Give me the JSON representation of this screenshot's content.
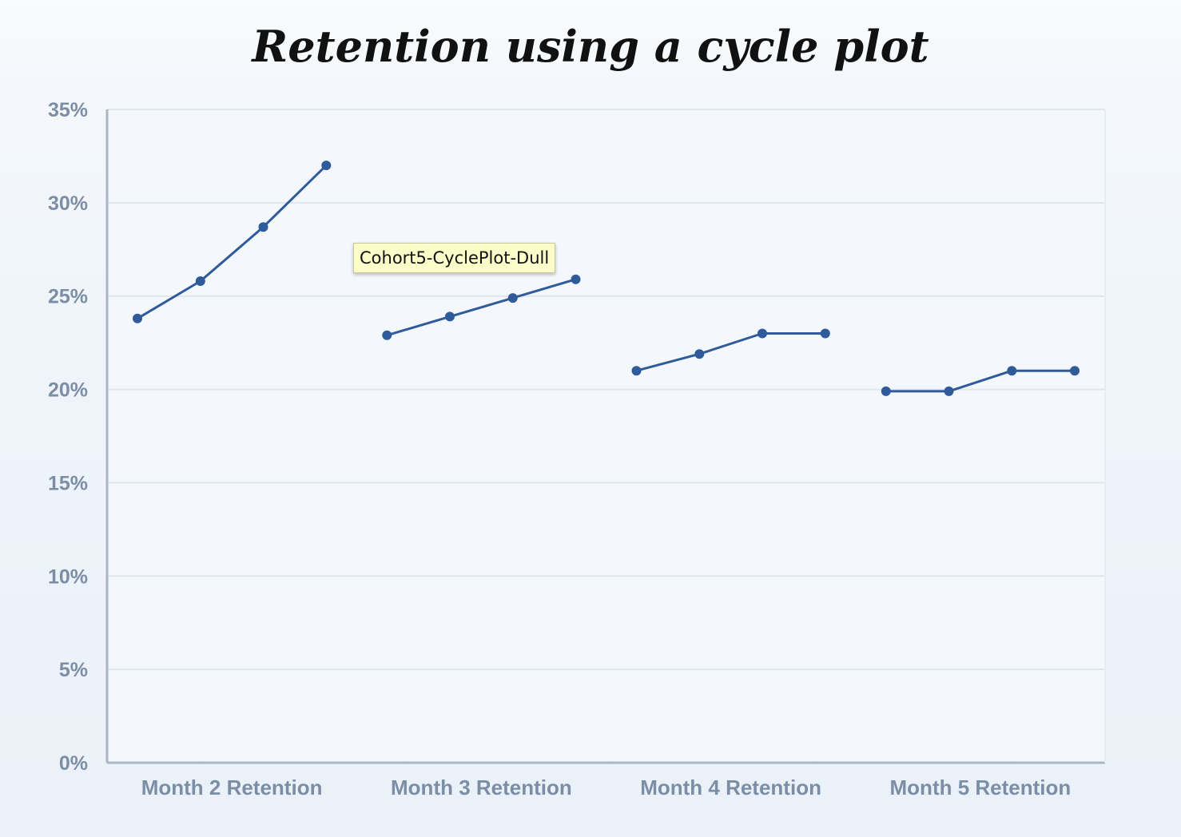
{
  "chart_data": {
    "type": "line",
    "title": "Retention using a cycle plot",
    "y_axis": {
      "ylim": [
        0,
        35
      ],
      "ticks": [
        0,
        5,
        10,
        15,
        20,
        25,
        30,
        35
      ],
      "tick_labels": [
        "0%",
        "5%",
        "10%",
        "15%",
        "20%",
        "25%",
        "30%",
        "35%"
      ]
    },
    "grid": true,
    "legend": "none",
    "categories": [
      "Month 2 Retention",
      "Month 3 Retention",
      "Month 4 Retention",
      "Month 5 Retention"
    ],
    "groups": [
      {
        "category": "Month 2 Retention",
        "values": [
          23.8,
          25.8,
          28.7,
          32.0
        ]
      },
      {
        "category": "Month 3 Retention",
        "values": [
          22.9,
          23.9,
          24.9,
          25.9
        ]
      },
      {
        "category": "Month 4 Retention",
        "values": [
          21.0,
          21.9,
          23.0,
          23.0
        ]
      },
      {
        "category": "Month 5 Retention",
        "values": [
          19.9,
          19.9,
          21.0,
          21.0
        ]
      }
    ],
    "colors": {
      "line": "#2f5b9b",
      "grid": "#dfe6ee",
      "axis": "#a9b6c6"
    }
  },
  "tooltip": {
    "text": "Cohort5-CyclePlot-Dull"
  }
}
